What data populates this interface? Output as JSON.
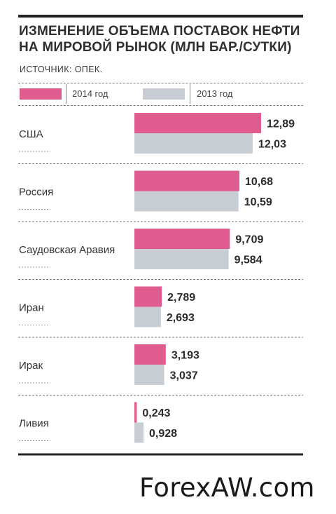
{
  "chart_data": {
    "type": "bar",
    "title_lines": [
      "ИЗМЕНЕНИЕ ОБЪЕМА ПОСТАВОК НЕФТИ",
      "НА МИРОВОЙ РЫНОК (МЛН БАР./СУТКИ)"
    ],
    "source": "ИСТОЧНИК: ОПЕК.",
    "orientation": "horizontal",
    "categories": [
      "США",
      "Россия",
      "Саудовская Аравия",
      "Иран",
      "Ирак",
      "Ливия"
    ],
    "series": [
      {
        "name": "2014 год",
        "color": "#de5c8e",
        "values": [
          12.89,
          10.68,
          9.709,
          2.789,
          3.193,
          0.243
        ],
        "labels": [
          "12,89",
          "10,68",
          "9,709",
          "2,789",
          "3,193",
          "0,243"
        ]
      },
      {
        "name": "2013 год",
        "color": "#c7cdd2",
        "values": [
          12.03,
          10.59,
          9.584,
          2.693,
          3.037,
          0.928
        ],
        "labels": [
          "12,03",
          "10,59",
          "9,584",
          "2,693",
          "3,037",
          "0,928"
        ]
      }
    ],
    "xlim": [
      0,
      13
    ],
    "legend": "top",
    "grid": false
  },
  "credit": "ForexAW.com"
}
